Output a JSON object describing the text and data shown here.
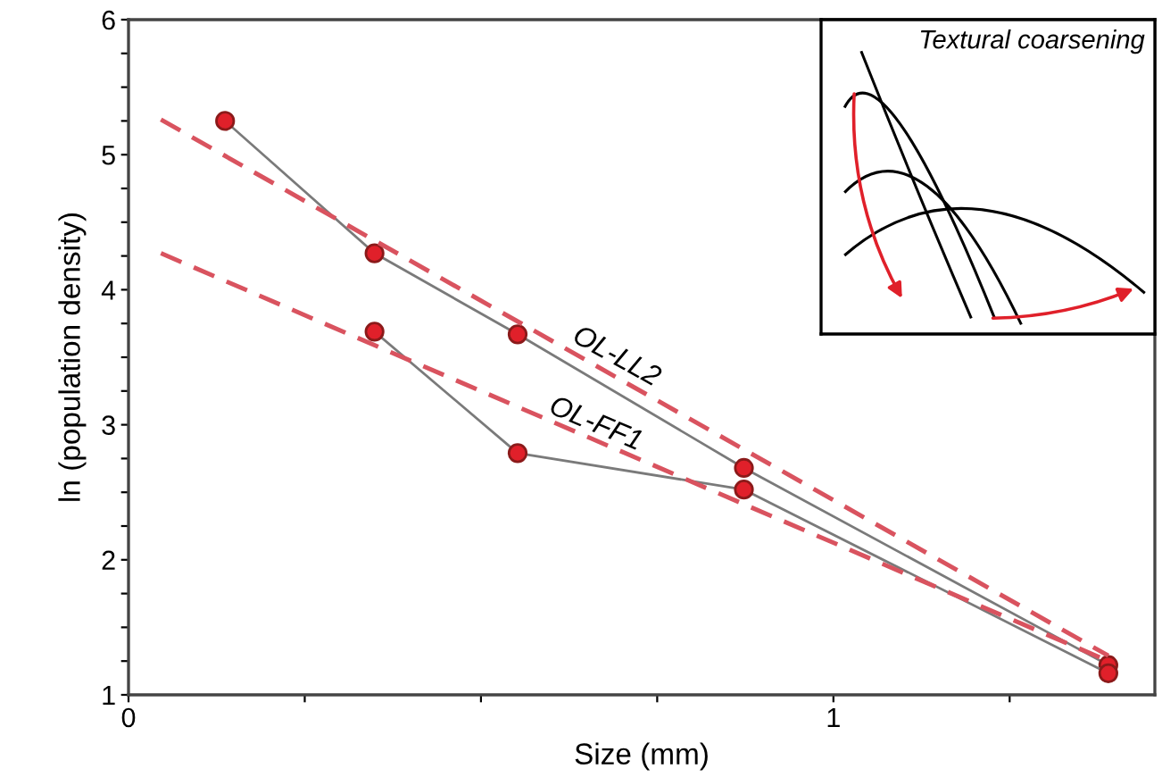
{
  "chart_data": {
    "type": "line",
    "xlabel": "Size (mm)",
    "ylabel": "ln (population density)",
    "xlim": [
      0,
      1.456
    ],
    "xticks": [
      0,
      {
        "value": 0.25,
        "label": null
      },
      {
        "value": 0.5,
        "label": null
      },
      {
        "value": 0.75,
        "label": null
      },
      1,
      {
        "value": 1.25,
        "label": null
      }
    ],
    "ylim": [
      1,
      6
    ],
    "yticks": [
      1,
      {
        "value": 1.25,
        "label": null
      },
      {
        "value": 1.5,
        "label": null
      },
      {
        "value": 1.75,
        "label": null
      },
      2,
      {
        "value": 2.25,
        "label": null
      },
      {
        "value": 2.5,
        "label": null
      },
      {
        "value": 2.75,
        "label": null
      },
      3,
      {
        "value": 3.25,
        "label": null
      },
      {
        "value": 3.5,
        "label": null
      },
      {
        "value": 3.75,
        "label": null
      },
      4,
      {
        "value": 4.25,
        "label": null
      },
      {
        "value": 4.5,
        "label": null
      },
      {
        "value": 4.75,
        "label": null
      },
      5,
      {
        "value": 5.25,
        "label": null
      },
      {
        "value": 5.5,
        "label": null
      },
      {
        "value": 5.75,
        "label": null
      },
      6
    ],
    "grid": false,
    "legend": false,
    "series": [
      {
        "color": "#7a7a7a",
        "marker": "circle",
        "line_style": "solid",
        "x": [
          0.137,
          0.349,
          0.552,
          0.873,
          1.39
        ],
        "values": [
          5.25,
          4.27,
          3.67,
          2.68,
          1.22
        ]
      },
      {
        "color": "#7a7a7a",
        "marker": "circle",
        "line_style": "solid",
        "x": [
          0.349,
          0.552,
          0.873,
          1.39
        ],
        "values": [
          3.69,
          2.79,
          2.52,
          1.16
        ]
      },
      {
        "color": "#d9535f",
        "marker": "none",
        "line_style": "dashed",
        "x": [
          0.046,
          1.39
        ],
        "values": [
          5.26,
          1.29
        ]
      },
      {
        "color": "#d9535f",
        "marker": "none",
        "line_style": "dashed",
        "x": [
          0.046,
          1.39
        ],
        "values": [
          4.27,
          1.25
        ]
      }
    ],
    "annotations": [
      "OL-LL2",
      "OL-FF1",
      "Textural coarsening"
    ]
  }
}
